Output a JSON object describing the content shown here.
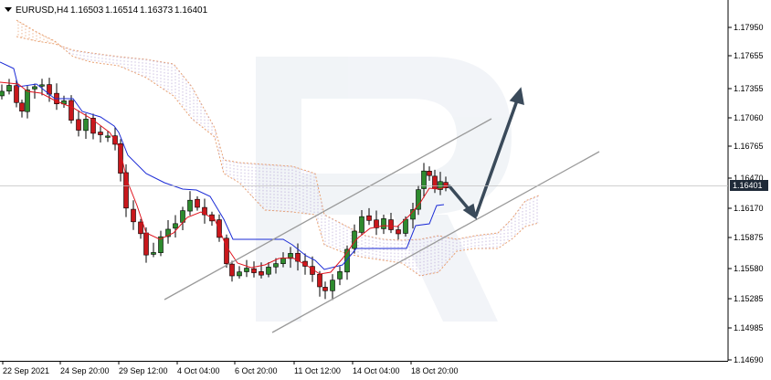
{
  "header": {
    "symbol": "EURUSD,H4",
    "open": "1.16503",
    "high": "1.16514",
    "low": "1.16373",
    "close": "1.16401"
  },
  "price_axis": {
    "labels": [
      "1.17950",
      "1.17655",
      "1.17355",
      "1.17060",
      "1.16765",
      "1.16470",
      "1.16170",
      "1.15875",
      "1.15580",
      "1.15285",
      "1.14985",
      "1.14690"
    ],
    "current_price": "1.16401"
  },
  "time_axis": {
    "labels": [
      "22 Sep 2021",
      "24 Sep 20:00",
      "29 Sep 12:00",
      "4 Oct 04:00",
      "6 Oct 20:00",
      "11 Oct 12:00",
      "14 Oct 04:00",
      "18 Oct 20:00"
    ]
  },
  "colors": {
    "bull_candle": "#2e8b2e",
    "bear_candle": "#c8181c",
    "tenkan_line": "#e0141e",
    "kijun_line": "#1b2bd6",
    "cloud_dots": "#e8a070",
    "cloud_fill": "#b8a8d8",
    "channel_line": "#9a9a9a",
    "forecast_arrow": "#3a4a5a",
    "price_box": "#1f2a38"
  },
  "chart_data": {
    "type": "candlestick",
    "symbol": "EURUSD",
    "timeframe": "H4",
    "ylim": [
      1.146,
      1.1815
    ],
    "y_ticks": [
      1.1795,
      1.17655,
      1.17355,
      1.1706,
      1.16765,
      1.1647,
      1.1617,
      1.15875,
      1.1558,
      1.15285,
      1.14985,
      1.1469
    ],
    "x_ticks": [
      "22 Sep 2021",
      "24 Sep 20:00",
      "29 Sep 12:00",
      "4 Oct 04:00",
      "6 Oct 20:00",
      "11 Oct 12:00",
      "14 Oct 04:00",
      "18 Oct 20:00"
    ],
    "last_close": 1.16401,
    "series": [
      {
        "name": "tenkan",
        "values": []
      },
      {
        "name": "kijun",
        "values": []
      }
    ],
    "annotations": [
      "ascending channel",
      "forecast arrow down to channel support then up"
    ]
  }
}
